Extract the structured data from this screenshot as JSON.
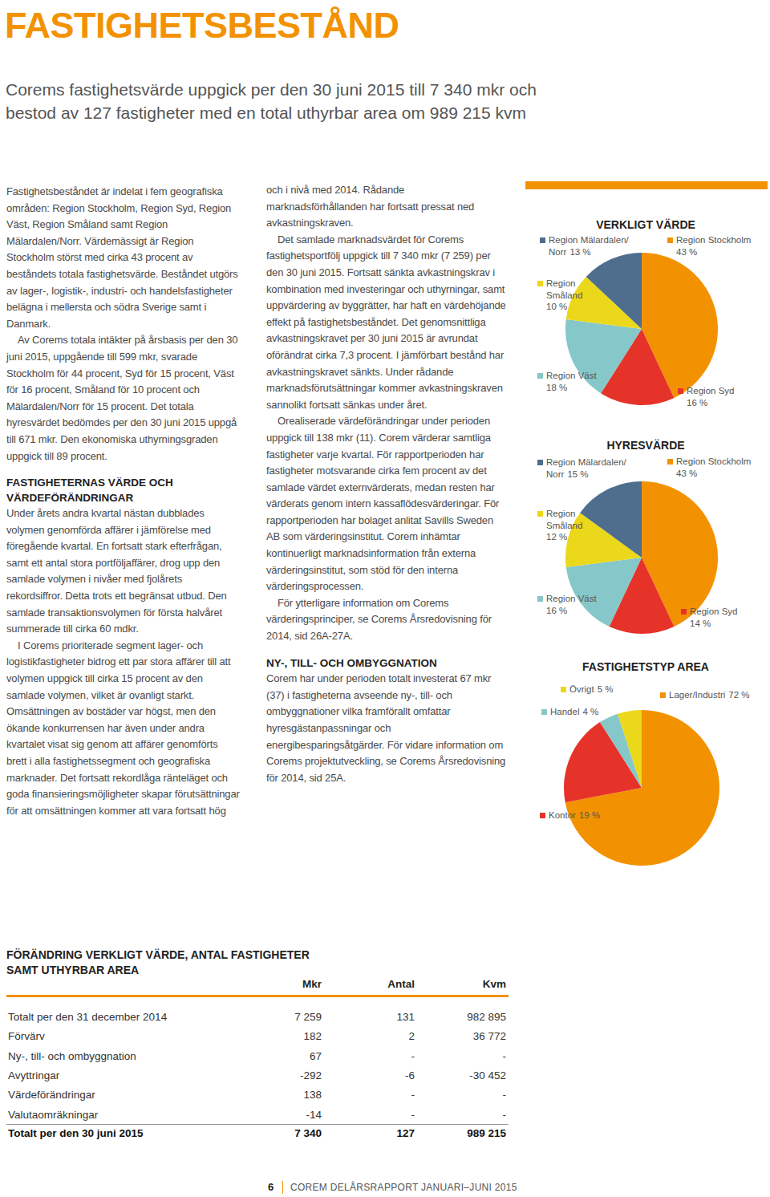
{
  "title": "FASTIGHETSBESTÅND",
  "subtitle": [
    "Corems fastighetsvärde uppgick per den 30 juni 2015 till 7 340 mkr och",
    "bestod av 127 fastigheter med en total uthyrbar area om 989 215 kvm"
  ],
  "columns": [
    [
      {
        "text": "Fastighetsbeståndet är indelat i fem geografiska områden: Region Stockholm, Region Syd, Region Väst, Region Småland samt Region Mälardalen/Norr. Värdemässigt är Region Stockholm störst med cirka 43 procent av beståndets totala fastighetsvärde. Beståndet utgörs av lager-, logistik-, industri- och handelsfastigheter belägna i mellersta och södra Sverige samt i Danmark."
      },
      {
        "text": "Av Corems totala intäkter på årsbasis per den 30 juni 2015, uppgående till 599 mkr, svarade Stockholm för 44 procent, Syd för 15 procent, Väst för 16 procent, Småland för 10 procent och Mälardalen/Norr för 15 procent. Det totala hyresvärdet bedömdes per den 30 juni 2015 uppgå till 671 mkr. Den ekonomiska uthyrningsgraden uppgick till 89 procent."
      },
      {
        "heading": "FASTIGHETERNAS VÄRDE OCH VÄRDEFÖRÄNDRINGAR"
      },
      {
        "text": "Under årets andra kvartal nästan dubblades volymen genomförda affärer i jämförelse med föregående kvartal. En fortsatt stark efterfrågan, samt ett antal stora portföljaffärer, drog upp den samlade volymen i nivåer med fjolårets rekordsiffror. Detta trots ett begränsat utbud. Den samlade transaktionsvolymen för första halvåret summerade till cirka 60 mdkr."
      },
      {
        "text": "I Corems prioriterade segment lager- och logistikfastigheter bidrog ett par stora affärer till att volymen uppgick till cirka 15 procent av den samlade volymen, vilket är ovanligt starkt. Omsättningen av bostäder var högst, men den ökande konkurrensen har även under andra kvartalet visat sig genom att affärer genomförts brett i alla fastighetssegment och geografiska marknader. Det fortsatt rekordlåga ränteläget och goda finansieringsmöjligheter skapar förutsättningar för att omsättningen kommer att vara fortsatt hög"
      }
    ],
    [
      {
        "text": "och i nivå med 2014. Rådande marknadsförhållanden har fortsatt pressat ned avkastningskraven."
      },
      {
        "text": "Det samlade marknadsvärdet för Corems fastighetsportfölj uppgick till 7 340 mkr (7 259) per den 30 juni 2015. Fortsatt sänkta avkastningskrav i kombination med investeringar och uthyrningar, samt uppvärdering av byggrätter, har haft en värdehöjande effekt på fastighetsbeståndet. Det genomsnittliga avkastningskravet per 30 juni 2015 är avrundat oförändrat cirka 7,3 procent. I jämförbart bestånd har avkastningskravet sänkts. Under rådande marknadsförutsättningar kommer avkastningskraven sannolikt fortsatt sänkas under året."
      },
      {
        "text": "Orealiserade värdeförändringar under perioden uppgick till 138 mkr (11). Corem värderar samtliga fastigheter varje kvartal. För rapportperioden har fastigheter motsvarande cirka fem procent av det samlade värdet externvärderats, medan resten har värderats genom intern kassaflödesvärderingar. För rapportperioden har bolaget anlitat Savills Sweden AB som värderingsinstitut. Corem inhämtar kontinuerligt marknadsinformation från externa värderingsinstitut, som stöd för den interna värderingsprocessen."
      },
      {
        "text": "För ytterligare information om Corems värderingsprinciper, se Corems Årsredovisning för 2014, sid 26A-27A."
      },
      {
        "heading": "NY-, TILL- OCH OMBYGGNATION"
      },
      {
        "text": "Corem har under perioden totalt investerat 67 mkr (37) i fastigheterna avseende ny-, till- och ombyggnationer vilka framförallt omfattar hyresgästanpassningar och energibesparingsåtgärder. För vidare information om Corems projektutveckling, se Corems Årsredovisning för 2014, sid 25A."
      }
    ]
  ],
  "chart_data": [
    {
      "type": "pie",
      "title": "VERKLIGT VÄRDE",
      "categories": [
        "Region Stockholm",
        "Region Syd",
        "Region Väst",
        "Region\nSmåland",
        "Region Mälardalen/\nNorr"
      ],
      "values": [
        43,
        16,
        18,
        10,
        13
      ],
      "value_labels": [
        "43 %",
        "16 %",
        "18 %",
        "10 %",
        "13 %"
      ],
      "colors": [
        "#f39200",
        "#e6332a",
        "#86c7c9",
        "#ecd81a",
        "#4f6d8c"
      ],
      "data_labels": true
    },
    {
      "type": "pie",
      "title": "HYRESVÄRDE",
      "categories": [
        "Region Stockholm",
        "Region Syd",
        "Region Väst",
        "Region\nSmåland",
        "Region Mälardalen/\nNorr"
      ],
      "values": [
        43,
        14,
        16,
        12,
        15
      ],
      "value_labels": [
        "43 %",
        "14 %",
        "16 %",
        "12 %",
        "15 %"
      ],
      "colors": [
        "#f39200",
        "#e6332a",
        "#86c7c9",
        "#ecd81a",
        "#4f6d8c"
      ],
      "data_labels": true
    },
    {
      "type": "pie",
      "title": "FASTIGHETSTYP AREA",
      "categories": [
        "Lager/Industri",
        "Kontor",
        "Handel",
        "Övrigt"
      ],
      "values": [
        72,
        19,
        4,
        5
      ],
      "value_labels": [
        "72 %",
        "19 %",
        "4 %",
        "5 %"
      ],
      "colors": [
        "#f39200",
        "#e6332a",
        "#86c7c9",
        "#ecd81a"
      ],
      "data_labels": true
    }
  ],
  "table": {
    "title": [
      "FÖRÄNDRING VERKLIGT VÄRDE, ANTAL FASTIGHETER",
      "SAMT UTHYRBAR AREA"
    ],
    "headers": [
      "Mkr",
      "Antal",
      "Kvm"
    ],
    "rows": [
      [
        "Totalt per den 31 december 2014",
        "7 259",
        "131",
        "982 895"
      ],
      [
        "Förvärv",
        "182",
        "2",
        "36 772"
      ],
      [
        "Ny-, till- och ombyggnation",
        "67",
        "-",
        "-"
      ],
      [
        "Avyttringar",
        "-292",
        "-6",
        "-30 452"
      ],
      [
        "Värdeförändringar",
        "138",
        "-",
        "-"
      ],
      [
        "Valutaomräkningar",
        "-14",
        "-",
        "-"
      ]
    ],
    "total": [
      "Totalt per den 30 juni 2015",
      "7 340",
      "127",
      "989 215"
    ]
  },
  "footer": {
    "page": "6",
    "text": "COREM DELÅRSRAPPORT JANUARI–JUNI 2015"
  }
}
